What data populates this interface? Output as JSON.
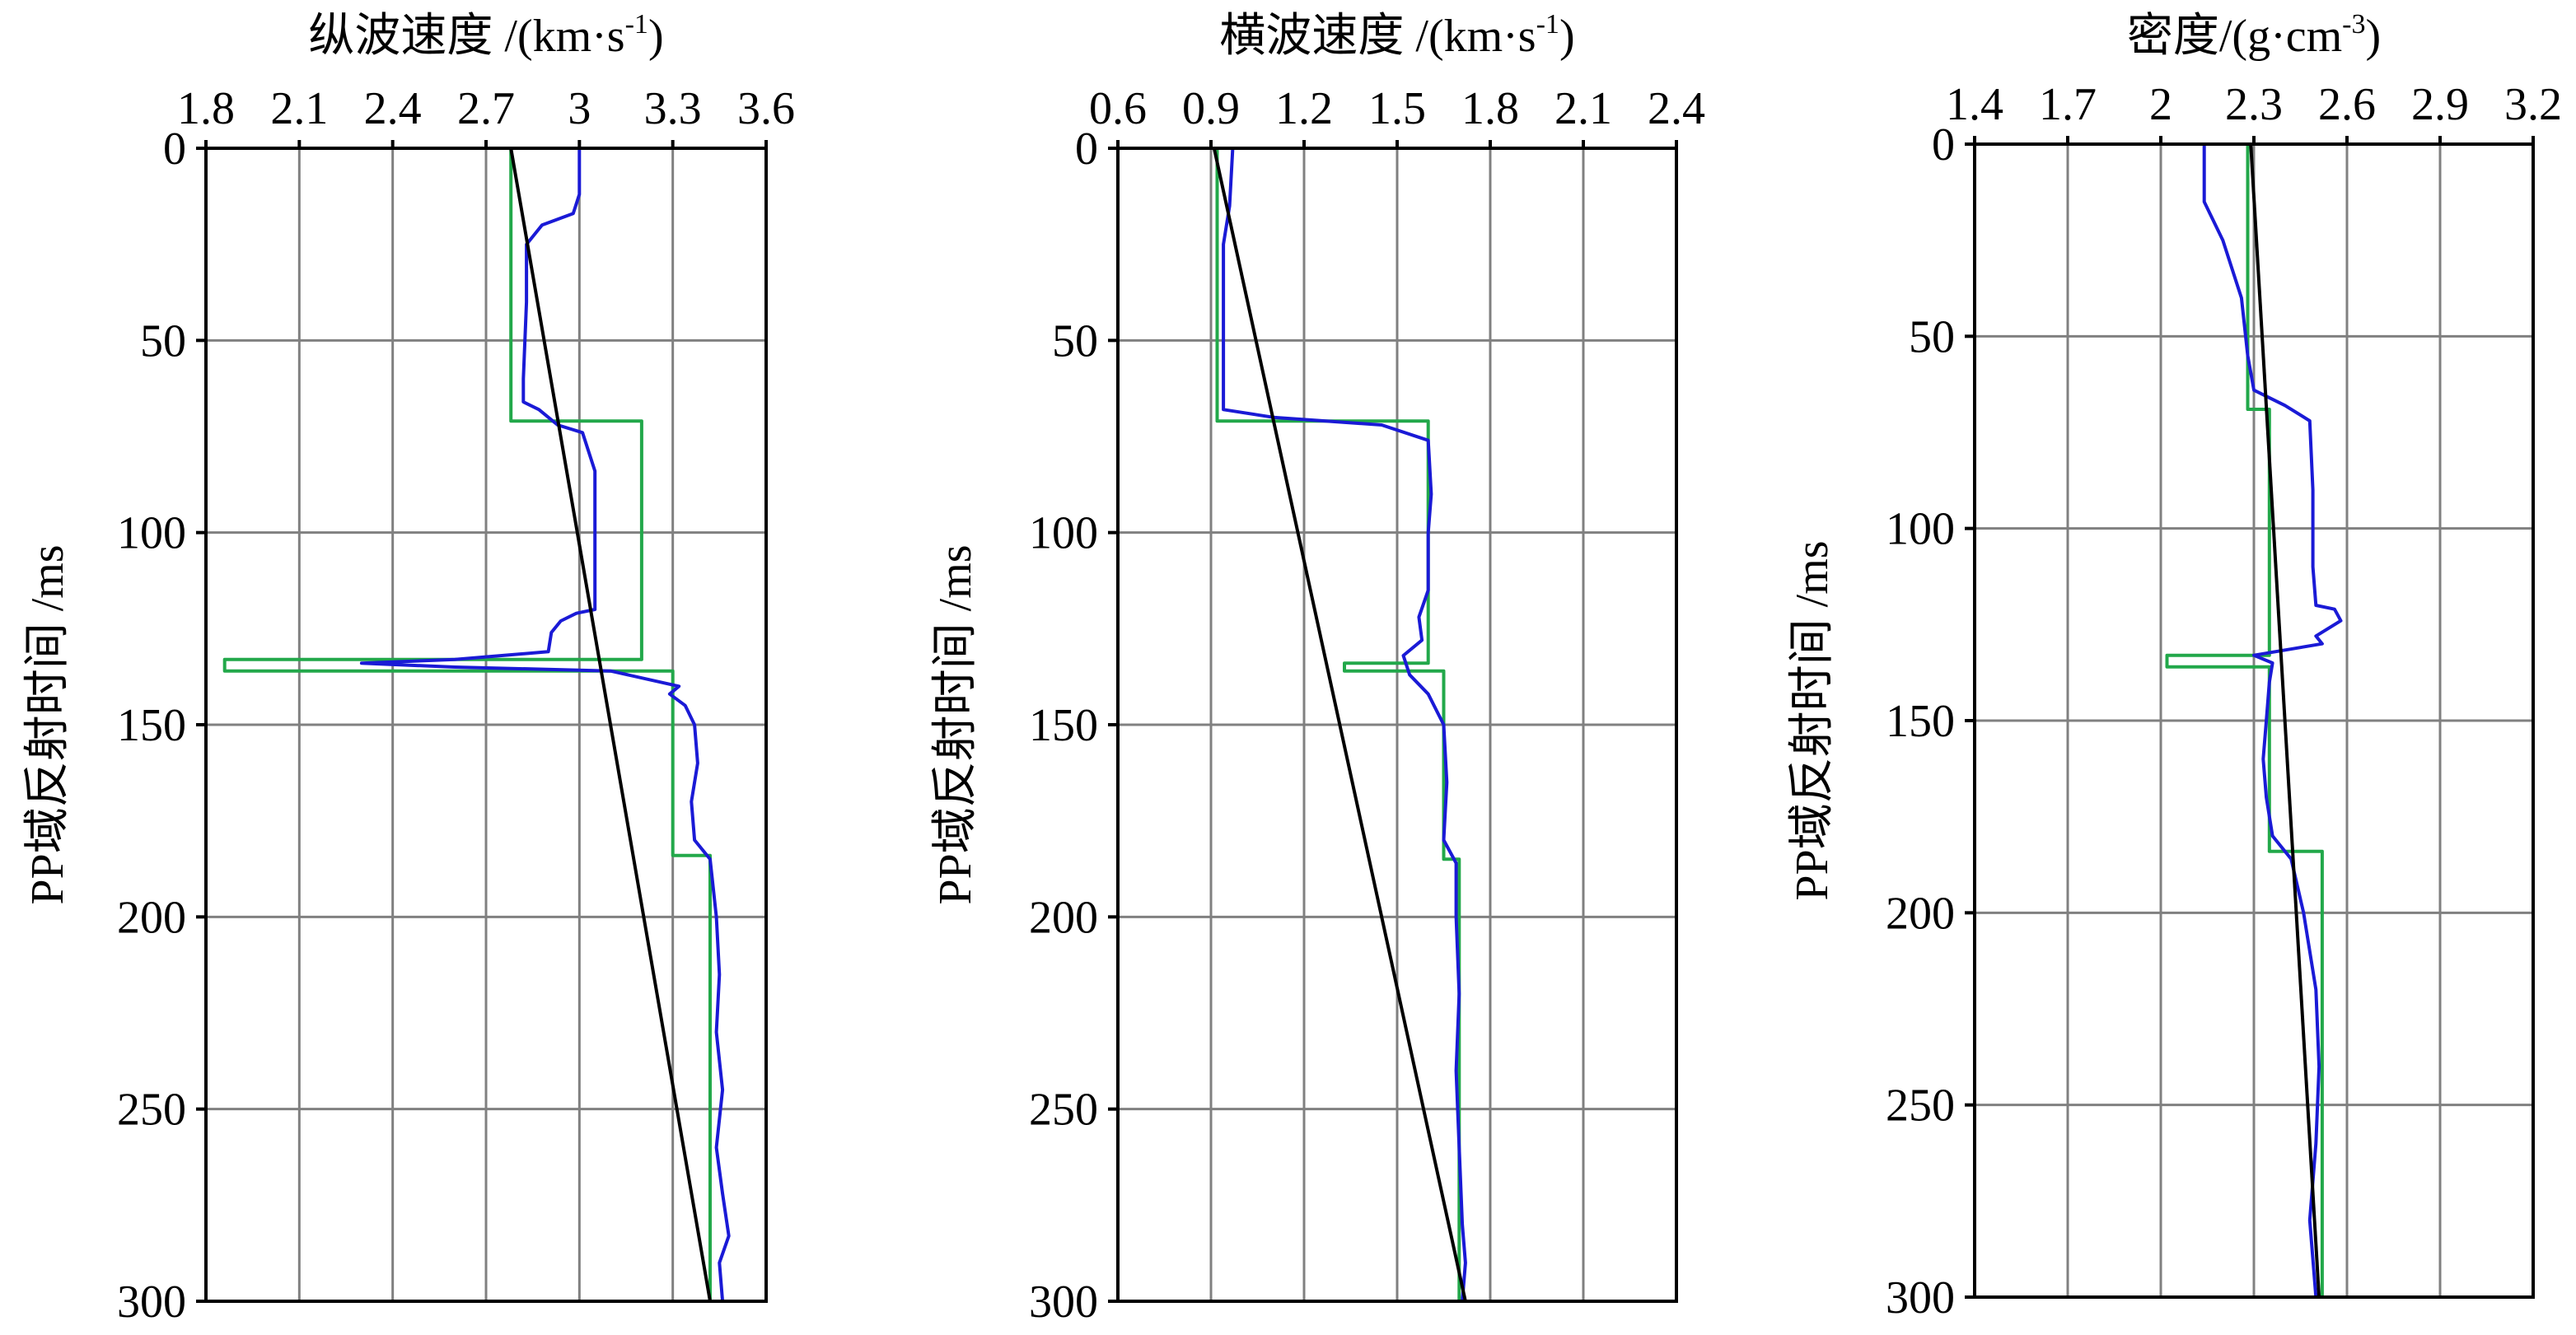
{
  "chart_data": [
    {
      "type": "line",
      "title": "纵波速度 /(km·s",
      "title_sup": "-1",
      "title_end": ")",
      "ylabel": "PP域反射时间 /ms",
      "xlim": [
        1.8,
        3.6
      ],
      "ylim": [
        0,
        300
      ],
      "y_inverted": true,
      "x_ticks": [
        "1.8",
        "2.1",
        "2.4",
        "2.7",
        "3",
        "3.3",
        "3.6"
      ],
      "y_ticks": [
        "0",
        "50",
        "100",
        "150",
        "200",
        "250",
        "300"
      ],
      "grid": true,
      "colors": {
        "measured": "#1a1ad6",
        "blocky": "#22a84a",
        "trend": "#000000"
      },
      "series": [
        {
          "role": "trend",
          "points": [
            [
              2.78,
              0
            ],
            [
              3.42,
              300
            ]
          ]
        },
        {
          "role": "blocky",
          "points": [
            [
              2.78,
              0
            ],
            [
              2.78,
              71
            ],
            [
              3.2,
              71
            ],
            [
              3.2,
              133
            ],
            [
              1.86,
              133
            ],
            [
              1.86,
              136
            ],
            [
              3.3,
              136
            ],
            [
              3.3,
              184
            ],
            [
              3.42,
              184
            ],
            [
              3.42,
              300
            ]
          ]
        },
        {
          "role": "measured",
          "points": [
            [
              3.0,
              0
            ],
            [
              3.0,
              12
            ],
            [
              2.98,
              17
            ],
            [
              2.88,
              20
            ],
            [
              2.83,
              25
            ],
            [
              2.83,
              40
            ],
            [
              2.82,
              60
            ],
            [
              2.82,
              66
            ],
            [
              2.87,
              68
            ],
            [
              2.93,
              72
            ],
            [
              3.01,
              74
            ],
            [
              3.05,
              84
            ],
            [
              3.05,
              100
            ],
            [
              3.05,
              120
            ],
            [
              2.99,
              121
            ],
            [
              2.94,
              123
            ],
            [
              2.91,
              126
            ],
            [
              2.9,
              131
            ],
            [
              2.6,
              133
            ],
            [
              2.3,
              134
            ],
            [
              2.6,
              135
            ],
            [
              3.1,
              136
            ],
            [
              3.32,
              140
            ],
            [
              3.29,
              142
            ],
            [
              3.34,
              145
            ],
            [
              3.37,
              150
            ],
            [
              3.38,
              160
            ],
            [
              3.36,
              170
            ],
            [
              3.37,
              180
            ],
            [
              3.42,
              185
            ],
            [
              3.44,
              200
            ],
            [
              3.45,
              215
            ],
            [
              3.44,
              230
            ],
            [
              3.46,
              245
            ],
            [
              3.44,
              260
            ],
            [
              3.46,
              272
            ],
            [
              3.48,
              283
            ],
            [
              3.45,
              290
            ],
            [
              3.46,
              300
            ]
          ]
        }
      ]
    },
    {
      "type": "line",
      "title": "横波速度 /(km·s",
      "title_sup": "-1",
      "title_end": ")",
      "ylabel": "PP域反射时间 /ms",
      "xlim": [
        0.6,
        2.4
      ],
      "ylim": [
        0,
        300
      ],
      "y_inverted": true,
      "x_ticks": [
        "0.6",
        "0.9",
        "1.2",
        "1.5",
        "1.8",
        "2.1",
        "2.4"
      ],
      "y_ticks": [
        "0",
        "50",
        "100",
        "150",
        "200",
        "250",
        "300"
      ],
      "grid": true,
      "colors": {
        "measured": "#1a1ad6",
        "blocky": "#22a84a",
        "trend": "#000000"
      },
      "series": [
        {
          "role": "trend",
          "points": [
            [
              0.91,
              0
            ],
            [
              1.72,
              300
            ]
          ]
        },
        {
          "role": "blocky",
          "points": [
            [
              0.92,
              0
            ],
            [
              0.92,
              71
            ],
            [
              1.6,
              71
            ],
            [
              1.6,
              134
            ],
            [
              1.33,
              134
            ],
            [
              1.33,
              136
            ],
            [
              1.65,
              136
            ],
            [
              1.65,
              185
            ],
            [
              1.7,
              185
            ],
            [
              1.7,
              300
            ]
          ]
        },
        {
          "role": "measured",
          "points": [
            [
              0.97,
              0
            ],
            [
              0.96,
              15
            ],
            [
              0.94,
              25
            ],
            [
              0.94,
              40
            ],
            [
              0.94,
              60
            ],
            [
              0.94,
              68
            ],
            [
              1.1,
              70
            ],
            [
              1.45,
              72
            ],
            [
              1.6,
              76
            ],
            [
              1.61,
              90
            ],
            [
              1.6,
              100
            ],
            [
              1.6,
              115
            ],
            [
              1.57,
              122
            ],
            [
              1.58,
              128
            ],
            [
              1.52,
              132
            ],
            [
              1.54,
              137
            ],
            [
              1.6,
              142
            ],
            [
              1.65,
              150
            ],
            [
              1.66,
              165
            ],
            [
              1.65,
              180
            ],
            [
              1.69,
              186
            ],
            [
              1.69,
              200
            ],
            [
              1.7,
              220
            ],
            [
              1.69,
              240
            ],
            [
              1.7,
              260
            ],
            [
              1.71,
              280
            ],
            [
              1.72,
              290
            ],
            [
              1.71,
              300
            ]
          ]
        }
      ]
    },
    {
      "type": "line",
      "title": "密度/(g·cm",
      "title_sup": "-3",
      "title_end": ")",
      "ylabel": "PP域反射时间 /ms",
      "xlim": [
        1.4,
        3.2
      ],
      "ylim": [
        0,
        300
      ],
      "y_inverted": true,
      "x_ticks": [
        "1.4",
        "1.7",
        "2",
        "2.3",
        "2.6",
        "2.9",
        "3.2"
      ],
      "y_ticks": [
        "0",
        "50",
        "100",
        "150",
        "200",
        "250",
        "300"
      ],
      "grid": true,
      "colors": {
        "measured": "#1a1ad6",
        "blocky": "#22a84a",
        "trend": "#000000"
      },
      "series": [
        {
          "role": "trend",
          "points": [
            [
              2.29,
              0
            ],
            [
              2.51,
              300
            ]
          ]
        },
        {
          "role": "blocky",
          "points": [
            [
              2.28,
              0
            ],
            [
              2.28,
              69
            ],
            [
              2.35,
              69
            ],
            [
              2.35,
              133
            ],
            [
              2.02,
              133
            ],
            [
              2.02,
              136
            ],
            [
              2.35,
              136
            ],
            [
              2.35,
              184
            ],
            [
              2.52,
              184
            ],
            [
              2.52,
              300
            ]
          ]
        },
        {
          "role": "measured",
          "points": [
            [
              2.14,
              0
            ],
            [
              2.14,
              15
            ],
            [
              2.2,
              25
            ],
            [
              2.26,
              40
            ],
            [
              2.28,
              55
            ],
            [
              2.3,
              64
            ],
            [
              2.4,
              68
            ],
            [
              2.48,
              72
            ],
            [
              2.49,
              90
            ],
            [
              2.49,
              110
            ],
            [
              2.5,
              120
            ],
            [
              2.56,
              121
            ],
            [
              2.58,
              124
            ],
            [
              2.5,
              128
            ],
            [
              2.52,
              130
            ],
            [
              2.3,
              133
            ],
            [
              2.36,
              135
            ],
            [
              2.35,
              140
            ],
            [
              2.34,
              150
            ],
            [
              2.33,
              160
            ],
            [
              2.34,
              170
            ],
            [
              2.36,
              180
            ],
            [
              2.42,
              186
            ],
            [
              2.46,
              200
            ],
            [
              2.5,
              220
            ],
            [
              2.51,
              240
            ],
            [
              2.5,
              260
            ],
            [
              2.48,
              280
            ],
            [
              2.5,
              300
            ]
          ]
        }
      ]
    }
  ]
}
